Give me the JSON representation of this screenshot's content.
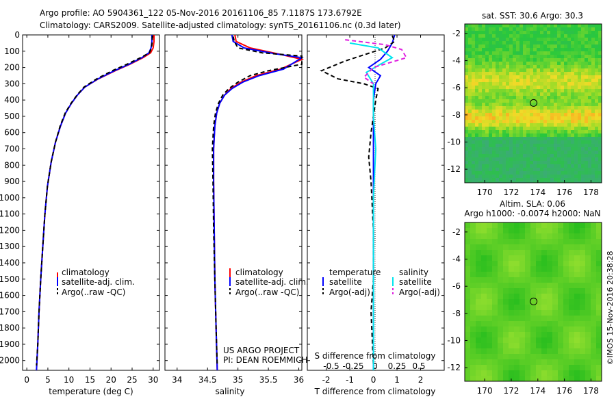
{
  "header": {
    "line1": "Argo profile: AO 5904361_122 05-Nov-2016 20161106_85 7.1187S 173.6792E",
    "line2": "Climatology: CARS2009. Satellite-adjusted climatology: synTS_20161106.nc (0.3d later)"
  },
  "depth_ticks": [
    0,
    100,
    200,
    300,
    400,
    500,
    600,
    700,
    800,
    900,
    1000,
    1100,
    1200,
    1300,
    1400,
    1500,
    1600,
    1700,
    1800,
    1900,
    2000
  ],
  "colors": {
    "climatology": "#ff0000",
    "satellite": "#0000ff",
    "argo": "#000000",
    "sal_satellite": "#00e5ee",
    "sal_argo": "#e020e0"
  },
  "chart_data": [
    {
      "type": "line",
      "name": "temperature-panel",
      "xlabel": "temperature (deg C)",
      "ylabel": "",
      "xlim": [
        -1,
        31.5
      ],
      "ylim": [
        2060,
        0
      ],
      "xticks": [
        0,
        5,
        10,
        15,
        20,
        25,
        30
      ],
      "x_tick_labels": [
        "0",
        "5",
        "10",
        "15",
        "20",
        "25",
        "30"
      ],
      "legend": [
        "climatology",
        "satellite-adj. clim.",
        "Argo(..raw -QC)"
      ],
      "series": [
        {
          "name": "climatology",
          "role": "climatology",
          "dashed": false,
          "points": [
            [
              30.2,
              0
            ],
            [
              30.2,
              40
            ],
            [
              30.0,
              80
            ],
            [
              29.4,
              110
            ],
            [
              27.6,
              140
            ],
            [
              24.5,
              180
            ],
            [
              21.0,
              220
            ],
            [
              17.0,
              270
            ],
            [
              13.8,
              320
            ],
            [
              12.0,
              370
            ],
            [
              10.6,
              420
            ],
            [
              9.2,
              480
            ],
            [
              8.0,
              560
            ],
            [
              6.8,
              660
            ],
            [
              5.8,
              780
            ],
            [
              4.9,
              930
            ],
            [
              4.3,
              1100
            ],
            [
              3.8,
              1300
            ],
            [
              3.3,
              1500
            ],
            [
              2.9,
              1700
            ],
            [
              2.6,
              1900
            ],
            [
              2.3,
              2060
            ]
          ]
        },
        {
          "name": "satellite-adj. clim.",
          "role": "satellite",
          "dashed": false,
          "points": [
            [
              29.7,
              0
            ],
            [
              29.7,
              40
            ],
            [
              29.5,
              80
            ],
            [
              29.0,
              110
            ],
            [
              27.3,
              140
            ],
            [
              24.3,
              180
            ],
            [
              20.8,
              220
            ],
            [
              16.9,
              270
            ],
            [
              13.8,
              320
            ],
            [
              12.0,
              370
            ],
            [
              10.6,
              420
            ],
            [
              9.2,
              480
            ],
            [
              8.0,
              560
            ],
            [
              6.8,
              660
            ],
            [
              5.8,
              780
            ],
            [
              4.9,
              930
            ],
            [
              4.3,
              1100
            ],
            [
              3.8,
              1300
            ],
            [
              3.3,
              1500
            ],
            [
              2.9,
              1700
            ],
            [
              2.6,
              1900
            ],
            [
              2.3,
              2060
            ]
          ]
        },
        {
          "name": "Argo(..raw -QC)",
          "role": "argo",
          "dashed": true,
          "points": [
            [
              29.8,
              5
            ],
            [
              29.8,
              40
            ],
            [
              29.6,
              80
            ],
            [
              29.1,
              110
            ],
            [
              27.0,
              140
            ],
            [
              23.8,
              180
            ],
            [
              20.3,
              220
            ],
            [
              16.6,
              270
            ],
            [
              13.6,
              320
            ],
            [
              11.9,
              370
            ],
            [
              10.5,
              420
            ],
            [
              9.1,
              480
            ],
            [
              7.9,
              560
            ],
            [
              6.8,
              660
            ],
            [
              5.8,
              780
            ],
            [
              4.9,
              930
            ],
            [
              4.3,
              1100
            ],
            [
              3.8,
              1300
            ],
            [
              3.3,
              1500
            ],
            [
              2.9,
              1700
            ],
            [
              2.6,
              1900
            ],
            [
              2.3,
              2030
            ]
          ]
        }
      ]
    },
    {
      "type": "line",
      "name": "salinity-panel",
      "xlabel": "salinity",
      "ylabel": "",
      "xlim": [
        33.8,
        36.05
      ],
      "ylim": [
        2060,
        0
      ],
      "xticks": [
        34,
        34.5,
        35,
        35.5,
        36
      ],
      "x_tick_labels": [
        "34",
        "34.5",
        "35",
        "35.5",
        "36"
      ],
      "legend": [
        "climatology",
        "satellite-adj. clim.",
        "Argo(..raw -QC)"
      ],
      "annotations": [
        "US ARGO PROJECT",
        "PI: DEAN ROEMMICH"
      ],
      "series": [
        {
          "name": "climatology",
          "role": "climatology",
          "dashed": false,
          "points": [
            [
              34.95,
              0
            ],
            [
              34.97,
              40
            ],
            [
              35.2,
              80
            ],
            [
              35.7,
              120
            ],
            [
              36.05,
              150
            ],
            [
              35.7,
              210
            ],
            [
              35.3,
              250
            ],
            [
              35.05,
              290
            ],
            [
              34.88,
              330
            ],
            [
              34.78,
              370
            ],
            [
              34.7,
              420
            ],
            [
              34.65,
              480
            ],
            [
              34.62,
              560
            ],
            [
              34.6,
              700
            ],
            [
              34.6,
              900
            ],
            [
              34.61,
              1200
            ],
            [
              34.62,
              1500
            ],
            [
              34.64,
              1800
            ],
            [
              34.66,
              2060
            ]
          ]
        },
        {
          "name": "satellite-adj. clim.",
          "role": "satellite",
          "dashed": false,
          "points": [
            [
              34.9,
              0
            ],
            [
              34.92,
              40
            ],
            [
              35.1,
              80
            ],
            [
              35.6,
              115
            ],
            [
              36.05,
              140
            ],
            [
              35.75,
              210
            ],
            [
              35.35,
              250
            ],
            [
              35.08,
              290
            ],
            [
              34.9,
              330
            ],
            [
              34.78,
              370
            ],
            [
              34.7,
              420
            ],
            [
              34.65,
              480
            ],
            [
              34.62,
              560
            ],
            [
              34.6,
              700
            ],
            [
              34.6,
              900
            ],
            [
              34.61,
              1200
            ],
            [
              34.62,
              1500
            ],
            [
              34.64,
              1800
            ],
            [
              34.66,
              2060
            ]
          ]
        },
        {
          "name": "Argo(..raw -QC)",
          "role": "argo",
          "dashed": true,
          "points": [
            [
              34.92,
              10
            ],
            [
              34.94,
              40
            ],
            [
              35.0,
              80
            ],
            [
              35.4,
              110
            ],
            [
              36.05,
              130
            ],
            [
              36.05,
              180
            ],
            [
              35.5,
              220
            ],
            [
              35.2,
              250
            ],
            [
              35.0,
              290
            ],
            [
              34.85,
              330
            ],
            [
              34.75,
              370
            ],
            [
              34.68,
              420
            ],
            [
              34.63,
              480
            ],
            [
              34.6,
              560
            ],
            [
              34.58,
              700
            ],
            [
              34.59,
              900
            ],
            [
              34.6,
              1200
            ],
            [
              34.62,
              1500
            ],
            [
              34.64,
              1800
            ],
            [
              34.66,
              2030
            ]
          ]
        }
      ]
    },
    {
      "type": "line",
      "name": "difference-panel",
      "xlabel": "T difference from climatology",
      "ylabel": "",
      "xlim": [
        -2.8,
        3.0
      ],
      "ylim": [
        2060,
        0
      ],
      "xticks": [
        -2,
        -1,
        0,
        1,
        2
      ],
      "x_tick_labels": [
        "-2",
        "-1",
        "0",
        "1",
        "2"
      ],
      "top_axis_label": "S difference from climatology",
      "s_ticks": [
        -0.5,
        -0.25,
        0,
        0.25,
        0.5
      ],
      "s_tick_labels": [
        "-0.5",
        "-0.25",
        "0",
        "0.25",
        "0.5"
      ],
      "legend_headers": [
        "temperature",
        "salinity"
      ],
      "legend": [
        "satellite",
        "Argo(-adj)",
        "satellite",
        "Argo(-adj)"
      ],
      "series": [
        {
          "name": "satellite",
          "role": "satellite",
          "dashed": false,
          "points": [
            [
              0.9,
              0
            ],
            [
              0.8,
              50
            ],
            [
              0.6,
              100
            ],
            [
              0.3,
              150
            ],
            [
              -0.2,
              200
            ],
            [
              0.3,
              250
            ],
            [
              0.1,
              300
            ],
            [
              0.0,
              400
            ],
            [
              0.0,
              600
            ],
            [
              0.0,
              1000
            ],
            [
              0.0,
              1500
            ],
            [
              0.0,
              2060
            ]
          ]
        },
        {
          "name": "Argo(-adj)",
          "role": "argo",
          "dashed": true,
          "points": [
            [
              0.8,
              5
            ],
            [
              0.9,
              40
            ],
            [
              0.5,
              80
            ],
            [
              -1.2,
              160
            ],
            [
              -2.2,
              220
            ],
            [
              -1.5,
              270
            ],
            [
              -0.4,
              300
            ],
            [
              0.2,
              330
            ],
            [
              0.1,
              400
            ],
            [
              -0.1,
              600
            ],
            [
              -0.2,
              750
            ],
            [
              -0.1,
              900
            ],
            [
              0.0,
              1200
            ],
            [
              0.0,
              1500
            ],
            [
              -0.1,
              1700
            ],
            [
              0.0,
              2030
            ]
          ]
        },
        {
          "name": "satellite",
          "role": "sal_satellite",
          "dashed": false,
          "points": [
            [
              -1.0,
              50
            ],
            [
              0.2,
              80
            ],
            [
              0.8,
              140
            ],
            [
              0.3,
              180
            ],
            [
              -0.3,
              230
            ],
            [
              0.0,
              300
            ],
            [
              0.0,
              500
            ],
            [
              0.1,
              700
            ],
            [
              0.0,
              1000
            ],
            [
              0.0,
              1500
            ],
            [
              0.0,
              2060
            ]
          ]
        },
        {
          "name": "Argo(-adj)",
          "role": "sal_argo",
          "dashed": true,
          "points": [
            [
              -1.2,
              30
            ],
            [
              0.5,
              60
            ],
            [
              1.2,
              90
            ],
            [
              1.4,
              140
            ],
            [
              0.0,
              200
            ],
            [
              -0.4,
              260
            ],
            [
              0.0,
              300
            ]
          ]
        }
      ]
    },
    {
      "type": "heatmap",
      "name": "sst-map",
      "title": "sat. SST: 30.6  Argo: 30.3",
      "xlim": [
        168.5,
        178.8
      ],
      "ylim": [
        -13,
        -1.3
      ],
      "xticks": [
        170,
        172,
        174,
        176,
        178
      ],
      "yticks": [
        -2,
        -4,
        -6,
        -8,
        -10,
        -12
      ],
      "marker": {
        "lon": 173.68,
        "lat": -7.12
      }
    },
    {
      "type": "heatmap",
      "name": "sla-map",
      "title": "Altim. SLA: 0.06",
      "subtitle": "Argo h1000: -0.0074 h2000: NaN",
      "xlim": [
        168.5,
        178.8
      ],
      "ylim": [
        -13,
        -1.3
      ],
      "xticks": [
        170,
        172,
        174,
        176,
        178
      ],
      "yticks": [
        -2,
        -4,
        -6,
        -8,
        -10,
        -12
      ],
      "marker": {
        "lon": 173.68,
        "lat": -7.12
      }
    }
  ],
  "side_text": "©IMOS 15-Nov-2016 20:38:28"
}
